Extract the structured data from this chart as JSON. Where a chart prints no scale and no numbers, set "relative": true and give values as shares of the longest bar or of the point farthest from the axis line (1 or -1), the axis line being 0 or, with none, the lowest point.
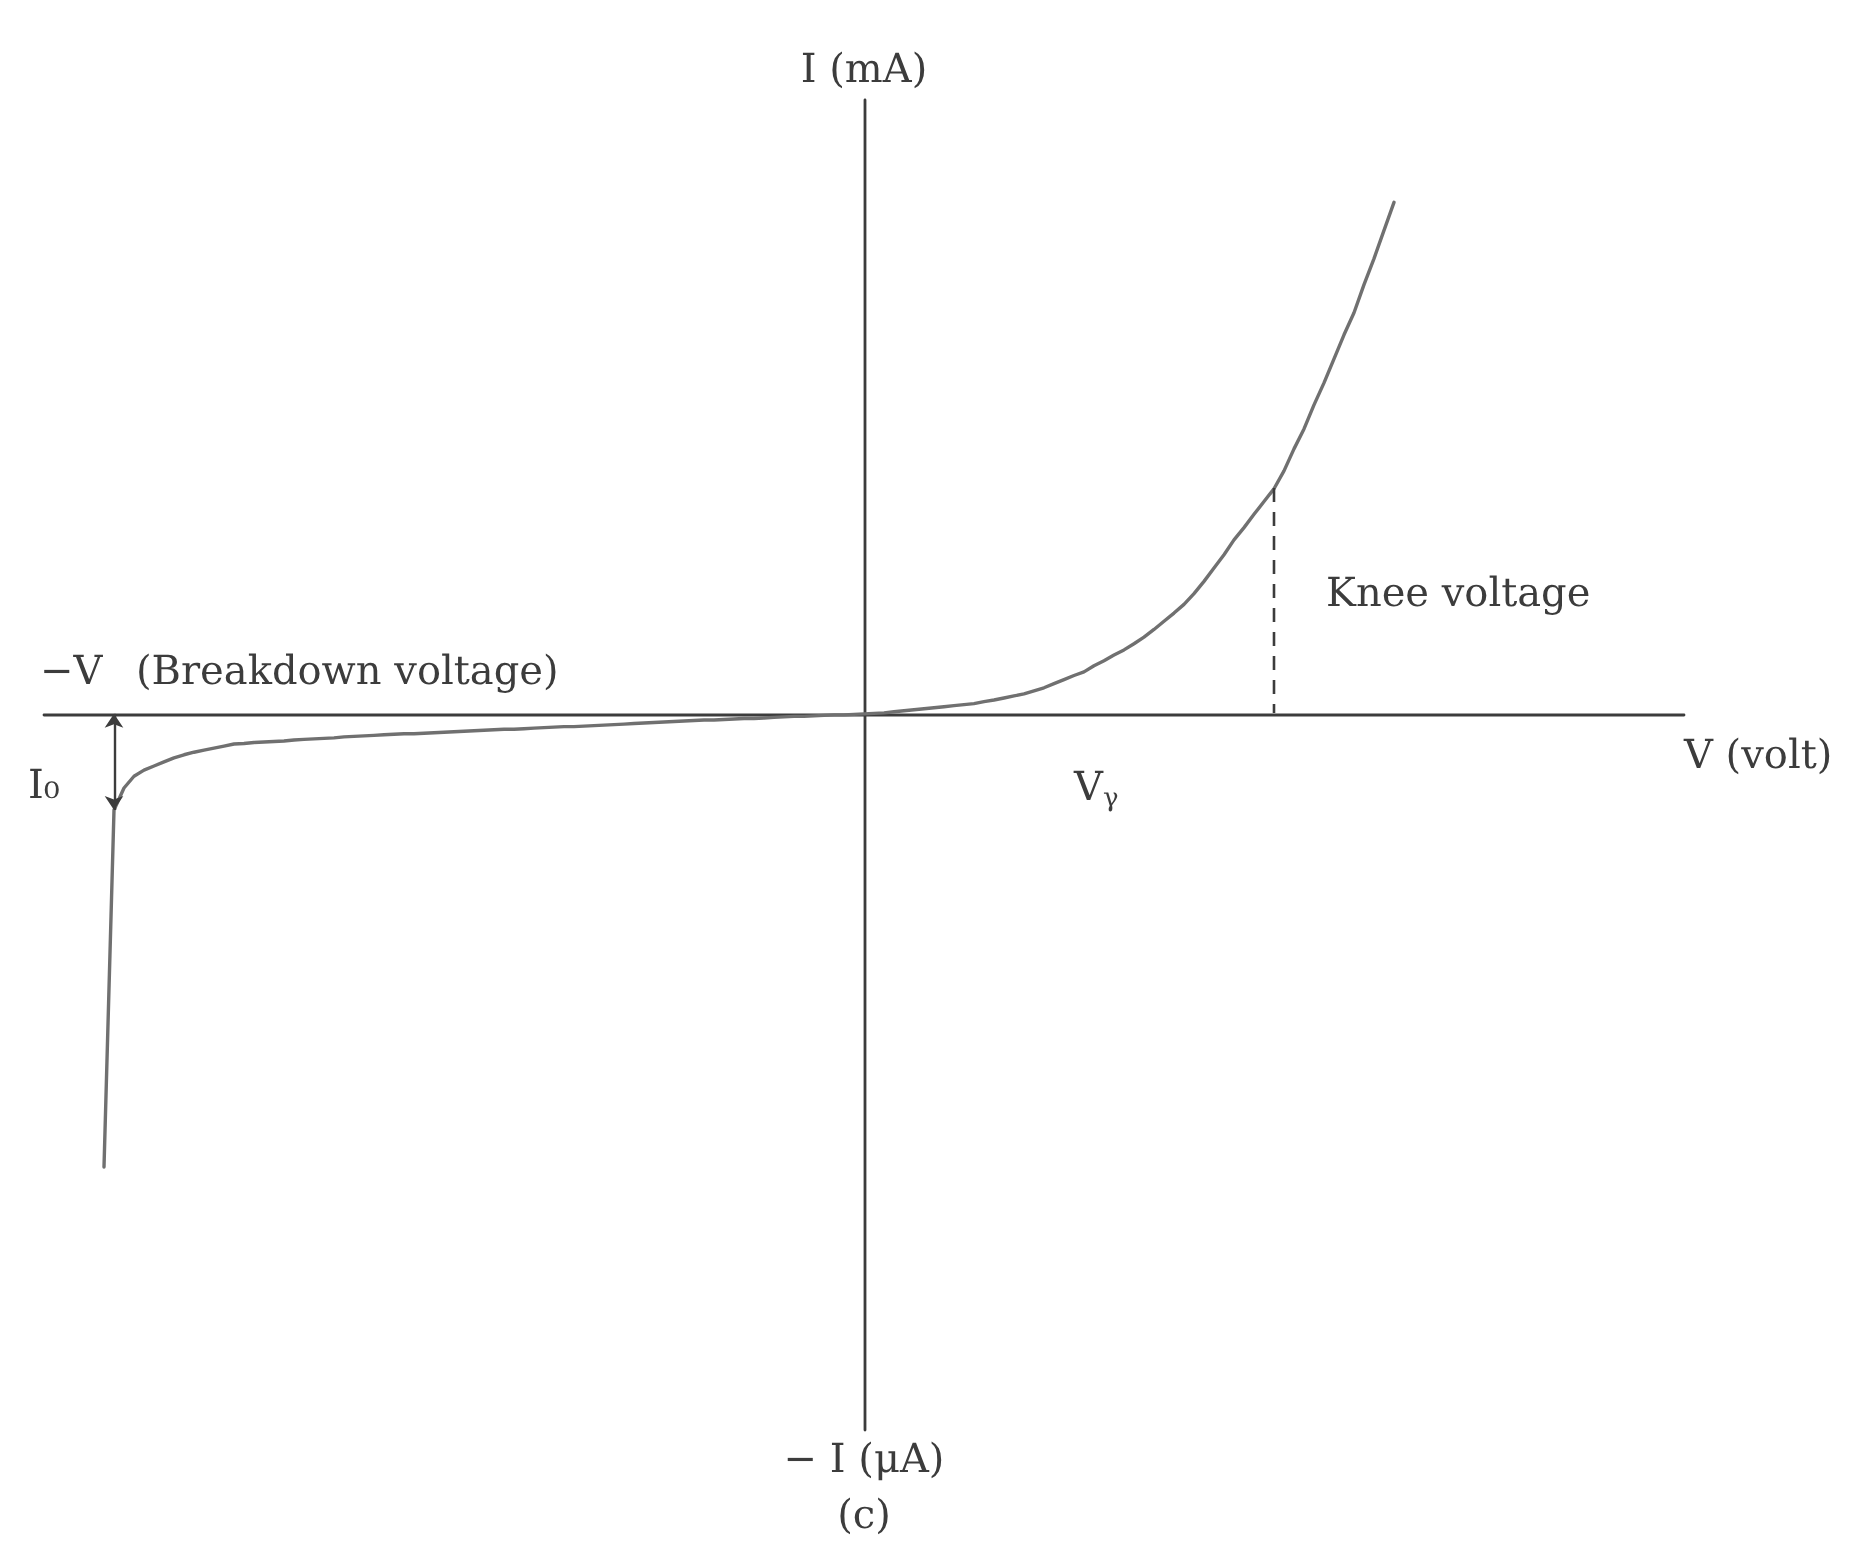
{
  "chart_data": {
    "type": "line",
    "relative": true,
    "xlabel": "V (volt)",
    "ylabel": "I (mA)",
    "annotations": [
      "−V",
      "(Breakdown voltage)",
      "I₀",
      "V$_{γ}$",
      "Knee voltage",
      "− I (μA)",
      "(c)"
    ],
    "categories": [
      null,
      null,
      null,
      null,
      null,
      null,
      null,
      null,
      null,
      null,
      null,
      null,
      null,
      null,
      null,
      null,
      null,
      null,
      null,
      null,
      null,
      null,
      null,
      null,
      null,
      null,
      null,
      null,
      null,
      null,
      null,
      null,
      null,
      null,
      null,
      null,
      null,
      null,
      null,
      null,
      null,
      null,
      null,
      null,
      null,
      null,
      null,
      null,
      null,
      null,
      null,
      null,
      null,
      null,
      null,
      null,
      null,
      null,
      null,
      null,
      null,
      null,
      null,
      null,
      null,
      null,
      null,
      null,
      null,
      null,
      null,
      null,
      null,
      null,
      null,
      null,
      null,
      null,
      null,
      null,
      null,
      null,
      null,
      null,
      null,
      null,
      null,
      null,
      null,
      null,
      null,
      null,
      null,
      null,
      null,
      null,
      null,
      null,
      null,
      null,
      null,
      null,
      null,
      null,
      null,
      null,
      null,
      null,
      null,
      null,
      null,
      null,
      null,
      null,
      null,
      null,
      null,
      null,
      null,
      null,
      null,
      null,
      null,
      null,
      null,
      null,
      null,
      null,
      null,
      null,
      null,
      null,
      null,
      null,
      null,
      null,
      null,
      null,
      null,
      null,
      null,
      null,
      null,
      null,
      null,
      null,
      null,
      null,
      null,
      null,
      null,
      null,
      null,
      null,
      null,
      null,
      null,
      null,
      null,
      null,
      null,
      null,
      null,
      null,
      null
    ],
    "series": [
      {
        "color": "#707070",
        "values": [
          null,
          null,
          null,
          null,
          null,
          null,
          -0.886,
          -0.188,
          -0.145,
          -0.122,
          -0.11,
          -0.102,
          -0.094,
          -0.086,
          -0.08,
          -0.075,
          -0.071,
          -0.067,
          -0.063,
          -0.059,
          -0.058,
          -0.056,
          -0.055,
          -0.054,
          -0.053,
          -0.051,
          -0.05,
          -0.049,
          -0.048,
          -0.047,
          -0.045,
          -0.044,
          -0.043,
          -0.042,
          -0.041,
          -0.04,
          -0.039,
          -0.039,
          -0.038,
          -0.037,
          -0.036,
          -0.035,
          -0.034,
          -0.033,
          -0.032,
          -0.031,
          -0.03,
          -0.03,
          -0.029,
          -0.028,
          -0.027,
          -0.026,
          -0.025,
          -0.025,
          -0.024,
          -0.023,
          -0.022,
          -0.021,
          -0.02,
          -0.019,
          -0.018,
          -0.017,
          -0.016,
          -0.015,
          -0.014,
          -0.013,
          -0.012,
          -0.012,
          -0.011,
          -0.01,
          -0.009,
          -0.009,
          -0.008,
          -0.007,
          -0.006,
          -0.005,
          -0.005,
          -0.004,
          -0.003,
          -0.002,
          -0.002,
          -0.001,
          0,
          0.001,
          0.002,
          0.004,
          0.006,
          0.008,
          0.01,
          0.012,
          0.014,
          0.016,
          0.018,
          0.02,
          0.024,
          0.027,
          0.031,
          0.035,
          0.039,
          0.045,
          0.051,
          0.059,
          0.067,
          0.075,
          0.082,
          0.094,
          0.104,
          0.115,
          0.125,
          0.137,
          0.15,
          0.165,
          0.181,
          0.197,
          0.214,
          0.235,
          0.259,
          0.285,
          0.311,
          0.34,
          0.364,
          0.39,
          0.415,
          0.44,
          0.475,
          0.518,
          0.557,
          0.604,
          0.647,
          0.694,
          0.741,
          0.784,
          0.839,
          0.89,
          0.945,
          1,
          null,
          null,
          null,
          null,
          null,
          null,
          null,
          null,
          null,
          null,
          null,
          null,
          null,
          null,
          null,
          null,
          null,
          null,
          null,
          null,
          null,
          null,
          null,
          null,
          null,
          null,
          null,
          null,
          null
        ]
      }
    ]
  }
}
